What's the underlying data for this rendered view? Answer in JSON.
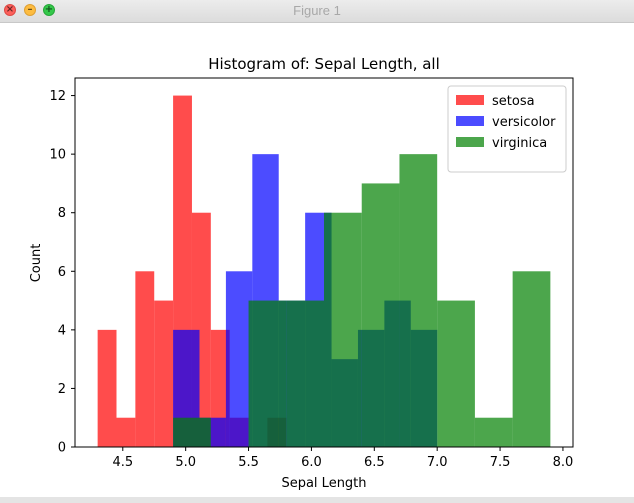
{
  "window": {
    "title": "Figure 1"
  },
  "chart_data": {
    "type": "bar",
    "title": "Histogram of: Sepal Length, all",
    "xlabel": "Sepal Length",
    "ylabel": "Count",
    "xlim": [
      4.12,
      8.08
    ],
    "ylim": [
      0,
      12.6
    ],
    "xticks": [
      "4.5",
      "5.0",
      "5.5",
      "6.0",
      "6.5",
      "7.0",
      "7.5",
      "8.0"
    ],
    "xtick_values": [
      4.5,
      5.0,
      5.5,
      6.0,
      6.5,
      7.0,
      7.5,
      8.0
    ],
    "yticks": [
      "0",
      "2",
      "4",
      "6",
      "8",
      "10",
      "12"
    ],
    "ytick_values": [
      0,
      2,
      4,
      6,
      8,
      10,
      12
    ],
    "legend_position": "top-right",
    "series": [
      {
        "name": "setosa",
        "color": "#ff0000",
        "bins": [
          [
            4.3,
            4.45,
            4
          ],
          [
            4.45,
            4.6,
            1
          ],
          [
            4.6,
            4.75,
            6
          ],
          [
            4.75,
            4.9,
            5
          ],
          [
            4.9,
            5.05,
            12
          ],
          [
            5.05,
            5.2,
            8
          ],
          [
            5.2,
            5.35,
            4
          ],
          [
            5.35,
            5.5,
            1
          ],
          [
            5.5,
            5.65,
            0
          ],
          [
            5.65,
            5.8,
            1
          ]
        ]
      },
      {
        "name": "versicolor",
        "color": "#0000ff",
        "bins": [
          [
            4.9,
            5.11,
            4
          ],
          [
            5.11,
            5.32,
            1
          ],
          [
            5.32,
            5.53,
            6
          ],
          [
            5.53,
            5.74,
            10
          ],
          [
            5.74,
            5.95,
            5
          ],
          [
            5.95,
            6.16,
            8
          ],
          [
            6.16,
            6.37,
            3
          ],
          [
            6.37,
            6.58,
            4
          ],
          [
            6.58,
            6.79,
            5
          ],
          [
            6.79,
            7.0,
            4
          ]
        ]
      },
      {
        "name": "virginica",
        "color": "#008000",
        "bins": [
          [
            4.9,
            5.2,
            1
          ],
          [
            5.2,
            5.5,
            0
          ],
          [
            5.5,
            5.8,
            5
          ],
          [
            5.8,
            6.1,
            5
          ],
          [
            6.1,
            6.4,
            8
          ],
          [
            6.4,
            6.7,
            9
          ],
          [
            6.7,
            7.0,
            10
          ],
          [
            7.0,
            7.3,
            5
          ],
          [
            7.3,
            7.6,
            1
          ],
          [
            7.6,
            7.9,
            6
          ]
        ]
      }
    ]
  }
}
